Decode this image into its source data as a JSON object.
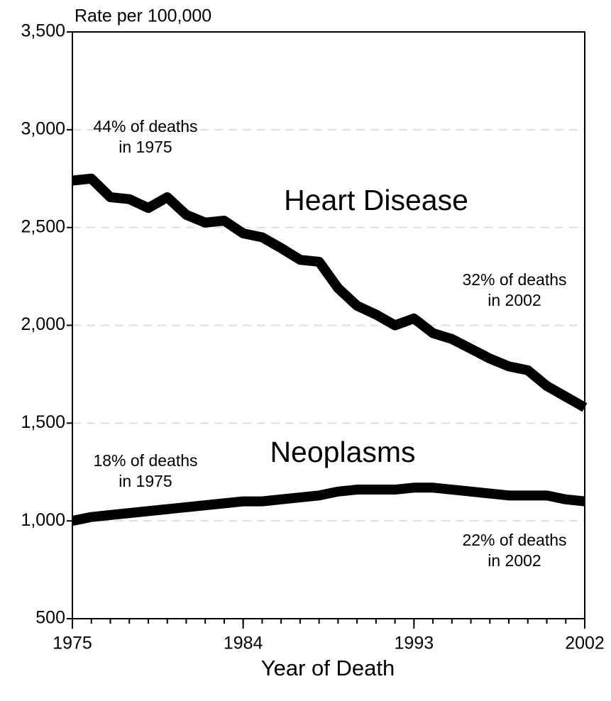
{
  "chart_data": {
    "type": "line",
    "y_label": "Rate per 100,000",
    "x_label": "Year of Death",
    "x": [
      1975,
      1976,
      1977,
      1978,
      1979,
      1980,
      1981,
      1982,
      1983,
      1984,
      1985,
      1986,
      1987,
      1988,
      1989,
      1990,
      1991,
      1992,
      1993,
      1994,
      1995,
      1996,
      1997,
      1998,
      1999,
      2000,
      2001,
      2002
    ],
    "series": [
      {
        "name": "Heart Disease",
        "color": "#000000",
        "values": [
          2740,
          2750,
          2655,
          2645,
          2600,
          2655,
          2565,
          2525,
          2535,
          2470,
          2450,
          2395,
          2335,
          2325,
          2190,
          2100,
          2055,
          2000,
          2035,
          1960,
          1930,
          1880,
          1830,
          1790,
          1770,
          1690,
          1635,
          1580
        ]
      },
      {
        "name": "Neoplasms",
        "color": "#000000",
        "values": [
          1000,
          1020,
          1030,
          1040,
          1050,
          1060,
          1070,
          1080,
          1090,
          1100,
          1100,
          1110,
          1120,
          1130,
          1150,
          1160,
          1160,
          1160,
          1170,
          1170,
          1160,
          1150,
          1140,
          1130,
          1130,
          1130,
          1110,
          1100
        ]
      }
    ],
    "xlim": [
      1975,
      2002
    ],
    "xticks": [
      1975,
      1984,
      1993,
      2002
    ],
    "ylim": [
      500,
      3500
    ],
    "yticks": [
      500,
      {
        "value": 1000,
        "label": "1,000"
      },
      {
        "value": 1500,
        "label": "1,500"
      },
      {
        "value": 2000,
        "label": "2,000"
      },
      {
        "value": 2500,
        "label": "2,500"
      },
      {
        "value": 3000,
        "label": "3,000"
      },
      {
        "value": 3500,
        "label": "3,500"
      }
    ],
    "grid": true,
    "annotations": [
      [
        "44% of deaths",
        "in 1975"
      ],
      [
        "32% of deaths",
        "in 2002"
      ],
      [
        "18% of deaths",
        "in 1975"
      ],
      [
        "22% of deaths",
        "in 2002"
      ]
    ]
  }
}
